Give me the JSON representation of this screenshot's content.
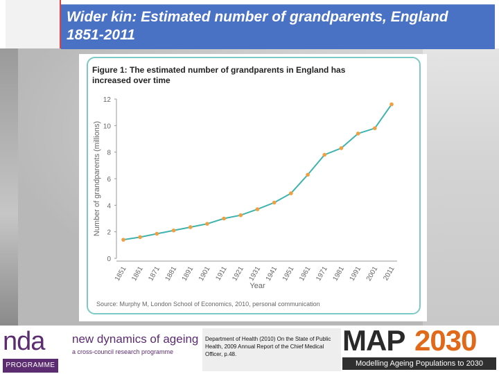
{
  "slide": {
    "title": "Wider kin: Estimated number of grandparents, England 1851-2011"
  },
  "figure": {
    "caption": "Figure 1: The estimated number of grandparents in England has increased over time",
    "source": "Source: Murphy M, London School of Economics, 2010, personal communication"
  },
  "chart_data": {
    "type": "line",
    "title": "",
    "xlabel": "Year",
    "ylabel": "Number of grandparents (millions)",
    "ylim": [
      0,
      12
    ],
    "yticks": [
      0,
      2,
      4,
      6,
      8,
      10,
      12
    ],
    "grid": false,
    "x": [
      1851,
      1861,
      1871,
      1881,
      1891,
      1901,
      1911,
      1921,
      1931,
      1941,
      1951,
      1961,
      1971,
      1981,
      1991,
      2001,
      2011
    ],
    "series": [
      {
        "name": "",
        "values": [
          1.4,
          1.6,
          1.85,
          2.1,
          2.35,
          2.6,
          3.0,
          3.25,
          3.7,
          4.2,
          4.9,
          6.3,
          7.8,
          8.3,
          9.4,
          9.8,
          11.6
        ]
      }
    ],
    "colors": {
      "line": "#3fb3ad",
      "marker": "#f0a040",
      "axis": "#999999"
    }
  },
  "footer": {
    "nda_logo_text": "nda",
    "nda_programme": "PROGRAMME",
    "ndoa_name": "new dynamics of ageing",
    "ndoa_sub": "a cross-council research programme",
    "reference": "Department of Health (2010) On the State of Public Health, 2009 Annual Report of the Chief Medical Officer, p.48.",
    "map_logo_a": "MAP",
    "map_logo_b": "2030",
    "map_sub": "Modelling Ageing Populations to 2030"
  }
}
